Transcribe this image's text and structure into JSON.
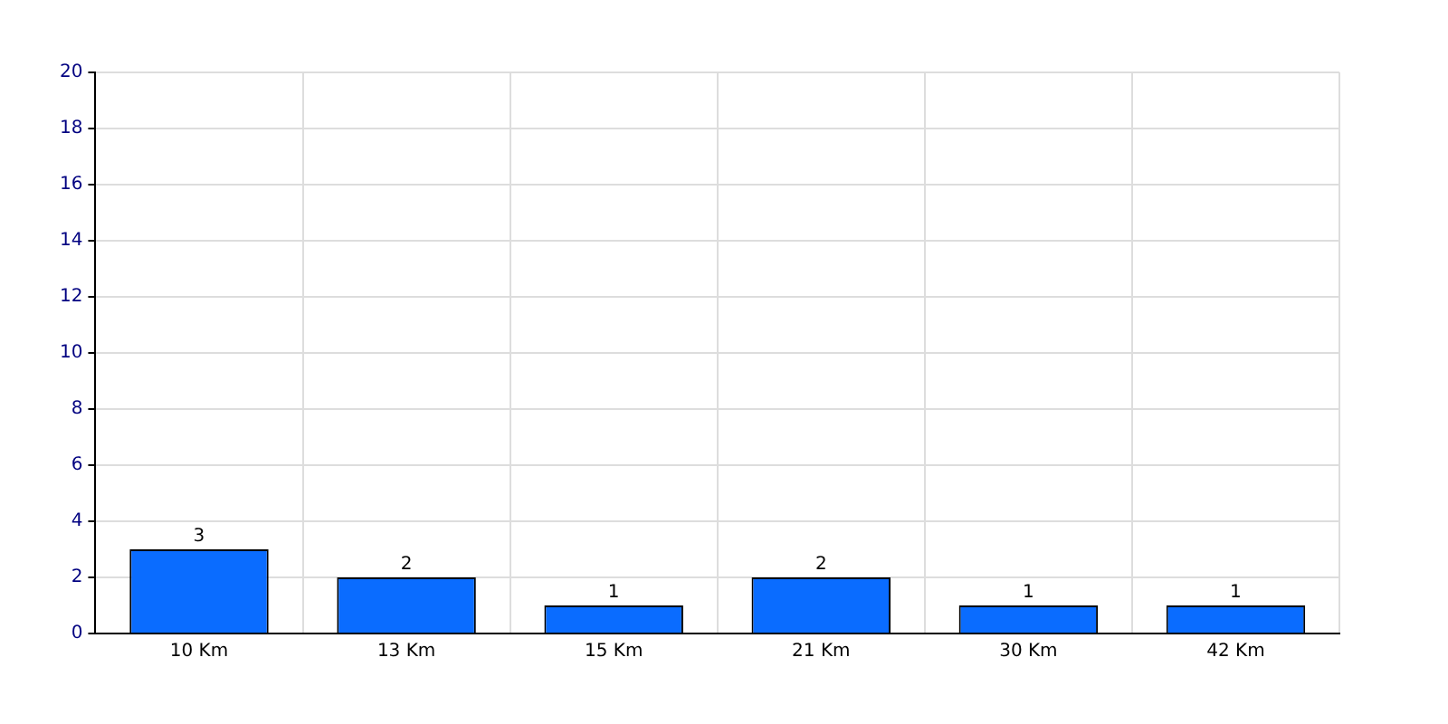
{
  "chart_data": {
    "type": "bar",
    "categories": [
      "10 Km",
      "13 Km",
      "15 Km",
      "21 Km",
      "30 Km",
      "42 Km"
    ],
    "values": [
      3,
      2,
      1,
      2,
      1,
      1
    ],
    "color": "#0a6cff",
    "ylim": [
      0,
      20
    ],
    "yticks": [
      0,
      2,
      4,
      6,
      8,
      10,
      12,
      14,
      16,
      18,
      20
    ],
    "grid": true,
    "data_labels": true
  }
}
